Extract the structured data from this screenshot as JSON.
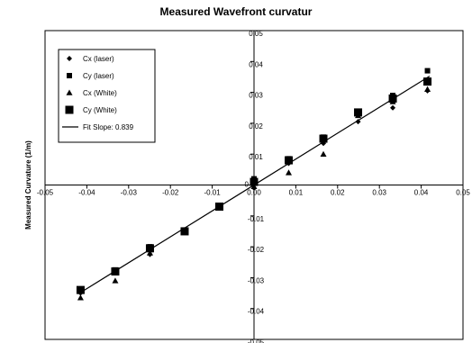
{
  "chart_data": {
    "type": "scatter",
    "title": "Measured Wavefront curvatur",
    "xlabel": "",
    "ylabel": "Measured Curvature (1/m)",
    "xlim": [
      -0.05,
      0.05
    ],
    "ylim": [
      -0.05,
      0.05
    ],
    "x_ticks": [
      "-0.05",
      "-0.04",
      "-0.03",
      "-0.02",
      "-0.01",
      "0.00",
      "0.01",
      "0.02",
      "0.03",
      "0.04",
      "0.05"
    ],
    "y_ticks": [
      "-0.05",
      "-0.04",
      "-0.03",
      "-0.02",
      "-0.01",
      "0",
      "0.01",
      "0.02",
      "0.03",
      "0.04",
      "0.05"
    ],
    "legend_position": "top-left",
    "grid": false,
    "series": [
      {
        "name": "Cx (laser)",
        "marker": "diamond",
        "color": "#000000",
        "x": [
          -0.0415,
          -0.0332,
          -0.0249,
          -0.0166,
          -0.0083,
          0.0,
          0.0083,
          0.0166,
          0.0249,
          0.0332,
          0.0415
        ],
        "y": [
          -0.035,
          -0.028,
          -0.0225,
          -0.0145,
          -0.007,
          -0.001,
          0.007,
          0.0135,
          0.0205,
          0.025,
          0.0305
        ]
      },
      {
        "name": "Cy (laser)",
        "marker": "square-small",
        "color": "#000000",
        "x": [
          -0.0415,
          -0.0332,
          -0.0249,
          -0.0166,
          -0.0083,
          0.0,
          0.0083,
          0.0166,
          0.0249,
          0.0332,
          0.0415
        ],
        "y": [
          -0.034,
          -0.0275,
          -0.02,
          -0.015,
          -0.007,
          0.002,
          0.0085,
          0.0155,
          0.0235,
          0.029,
          0.037
        ]
      },
      {
        "name": "Cx (White)",
        "marker": "triangle",
        "color": "#000000",
        "x": [
          -0.0415,
          -0.0332,
          -0.0249,
          -0.0166,
          -0.0083,
          0.0,
          0.0083,
          0.0166,
          0.0249,
          0.0332,
          0.0415
        ],
        "y": [
          -0.0365,
          -0.031,
          -0.022,
          -0.015,
          -0.0075,
          -0.0005,
          0.004,
          0.01,
          0.0225,
          0.027,
          0.031
        ]
      },
      {
        "name": "Cy (White)",
        "marker": "square-large",
        "color": "#000000",
        "x": [
          -0.0415,
          -0.0332,
          -0.0249,
          -0.0166,
          -0.0083,
          0.0,
          0.0083,
          0.0166,
          0.0249,
          0.0332,
          0.0415
        ],
        "y": [
          -0.034,
          -0.028,
          -0.0205,
          -0.015,
          -0.007,
          0.001,
          0.008,
          0.015,
          0.0235,
          0.028,
          0.0335
        ]
      }
    ],
    "fit_line": {
      "name": "Fit Slope: 0.839",
      "slope": 0.839,
      "x": [
        -0.042,
        0.042
      ]
    }
  }
}
